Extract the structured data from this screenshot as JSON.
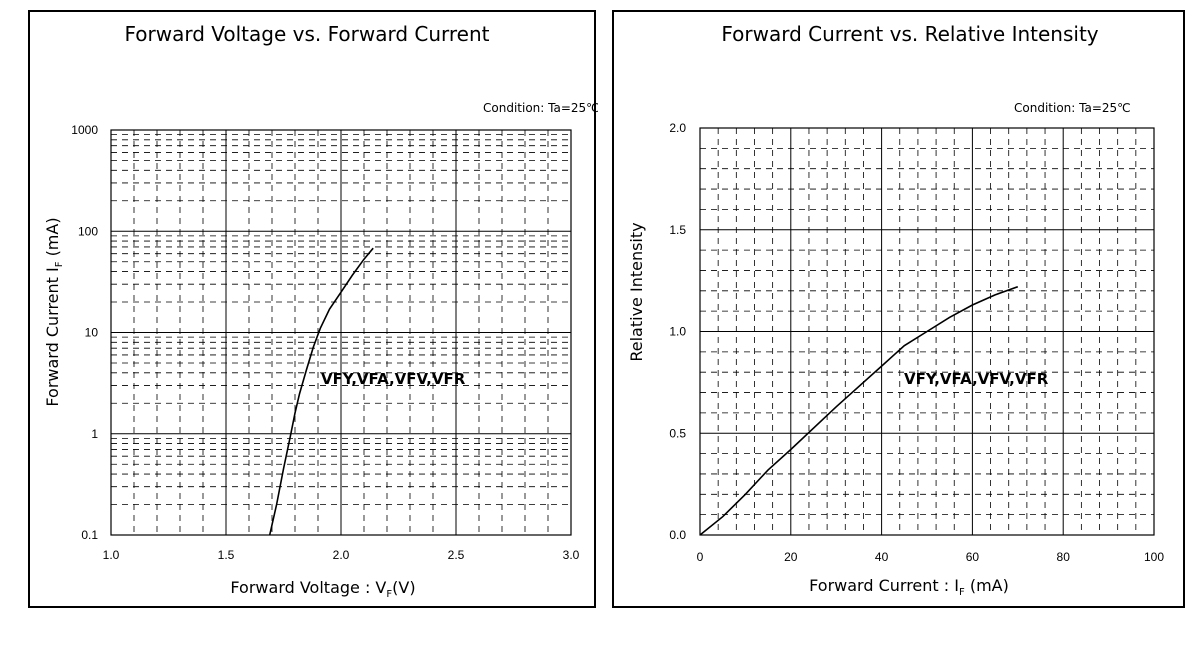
{
  "charts": [
    {
      "title": "Forward Voltage vs. Forward Current",
      "condition": "Condition: Ta=25℃",
      "xlabel_main": "Forward Voltage : V",
      "xlabel_sub": "F",
      "xlabel_tail": "(V)",
      "ylabel_main": "Forward Current  I",
      "ylabel_sub": "F",
      "ylabel_tail": "  (mA)",
      "series_label": "VFY,VFA,VFV,VFR",
      "x_ticks": [
        "1.0",
        "1.5",
        "2.0",
        "2.5",
        "3.0"
      ],
      "y_ticks": [
        "0.1",
        "1",
        "10",
        "100",
        "1000"
      ]
    },
    {
      "title": "Forward Current vs. Relative Intensity",
      "condition": "Condition: Ta=25℃",
      "xlabel_main": "Forward Current : I",
      "xlabel_sub": "F",
      "xlabel_tail": " (mA)",
      "ylabel": "Relative Intensity",
      "series_label": "VFY,VFA,VFV,VFR",
      "x_ticks": [
        "0",
        "20",
        "40",
        "60",
        "80",
        "100"
      ],
      "y_ticks": [
        "0.0",
        "0.5",
        "1.0",
        "1.5",
        "2.0"
      ]
    }
  ],
  "chart_data": [
    {
      "type": "line",
      "title": "Forward Voltage vs. Forward Current",
      "xlabel": "Forward Voltage : VF(V)",
      "ylabel": "Forward Current IF (mA)",
      "xscale": "linear",
      "yscale": "log",
      "xlim": [
        1.0,
        3.0
      ],
      "ylim": [
        0.1,
        1000
      ],
      "grid": true,
      "series": [
        {
          "name": "VFY,VFA,VFV,VFR",
          "x": [
            1.69,
            1.72,
            1.75,
            1.78,
            1.8,
            1.82,
            1.85,
            1.88,
            1.91,
            1.95,
            2.0,
            2.05,
            2.1,
            2.14
          ],
          "y": [
            0.1,
            0.2,
            0.45,
            0.95,
            1.6,
            2.5,
            4.3,
            7.2,
            11,
            17,
            25,
            37,
            53,
            68
          ]
        }
      ]
    },
    {
      "type": "line",
      "title": "Forward Current vs. Relative Intensity",
      "xlabel": "Forward Current : IF (mA)",
      "ylabel": "Relative Intensity",
      "xlim": [
        0,
        100
      ],
      "ylim": [
        0.0,
        2.0
      ],
      "grid": true,
      "series": [
        {
          "name": "VFY,VFA,VFV,VFR",
          "x": [
            0,
            5,
            10,
            15,
            20,
            30,
            40,
            45,
            50,
            55,
            60,
            65,
            70
          ],
          "y": [
            0.0,
            0.09,
            0.2,
            0.32,
            0.42,
            0.63,
            0.83,
            0.93,
            1.0,
            1.07,
            1.13,
            1.18,
            1.22
          ]
        }
      ]
    }
  ]
}
